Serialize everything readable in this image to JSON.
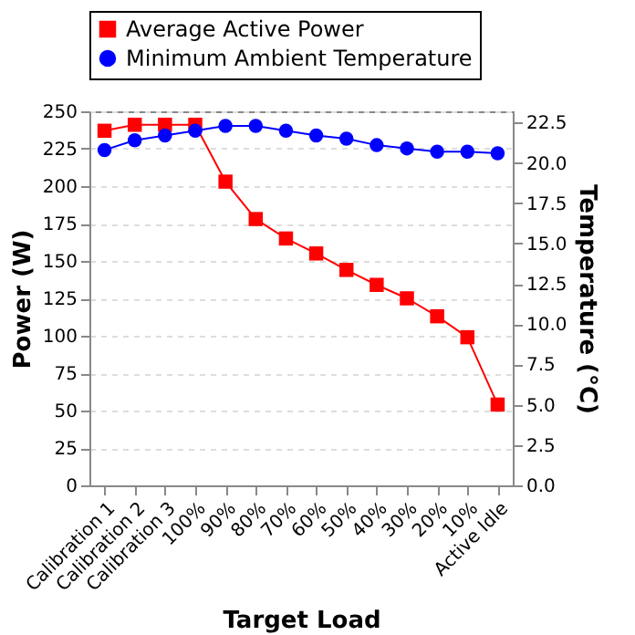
{
  "chart_data": {
    "type": "line",
    "xlabel": "Target Load",
    "ylabel": "Power (W)",
    "y2label": "Temperature  (°C)",
    "categories": [
      "Calibration 1",
      "Calibration 2",
      "Calibration 3",
      "100%",
      "90%",
      "80%",
      "70%",
      "60%",
      "50%",
      "40%",
      "30%",
      "20%",
      "10%",
      "Active Idle"
    ],
    "series": [
      {
        "name": "Average Active Power",
        "color": "#ff0000",
        "marker": "square",
        "values": [
          237,
          241,
          241,
          241,
          203,
          178,
          165,
          155,
          144,
          134,
          125,
          113,
          99,
          54
        ]
      },
      {
        "name": "Minimum Ambient Temperature",
        "color": "#0000ff",
        "marker": "circle",
        "axis": "y2",
        "values": [
          20.8,
          21.4,
          21.7,
          22.0,
          22.3,
          22.3,
          22.0,
          21.7,
          21.5,
          21.1,
          20.9,
          20.7,
          20.7,
          20.6
        ]
      }
    ],
    "ylim": [
      0,
      250
    ],
    "yticks": [
      0,
      25,
      50,
      75,
      100,
      125,
      150,
      175,
      200,
      225,
      250
    ],
    "y2lim": [
      0,
      23.2
    ],
    "y2ticks": [
      {
        "value": 0,
        "label": "0.0"
      },
      {
        "value": 2.5,
        "label": "2.5"
      },
      {
        "value": 5,
        "label": "5.0"
      },
      {
        "value": 7.5,
        "label": "7.5"
      },
      {
        "value": 10,
        "label": "10.0"
      },
      {
        "value": 12.5,
        "label": "12.5"
      },
      {
        "value": 15,
        "label": "15.0"
      },
      {
        "value": 17.5,
        "label": "17.5"
      },
      {
        "value": 20,
        "label": "20.0"
      },
      {
        "value": 22.5,
        "label": "22.5"
      }
    ],
    "grid": "y",
    "legend": "top",
    "line_style": "solid"
  }
}
